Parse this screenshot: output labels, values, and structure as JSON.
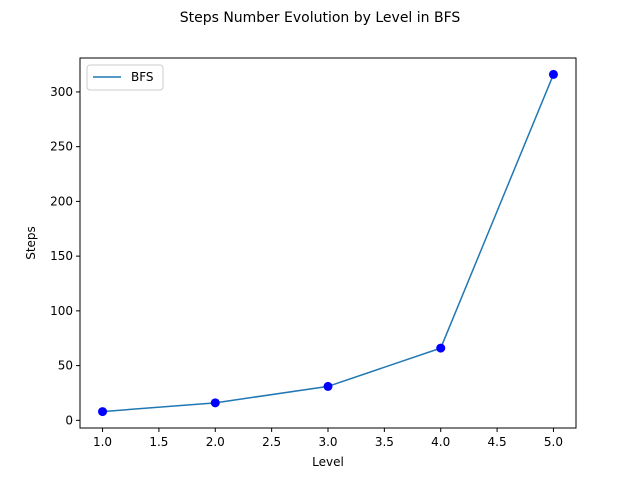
{
  "chart_data": {
    "type": "line",
    "title": "Steps Number Evolution by Level in BFS",
    "xlabel": "Level",
    "ylabel": "Steps",
    "xlim": [
      0.8,
      5.2
    ],
    "ylim": [
      -7,
      331
    ],
    "xticks": [
      1.0,
      1.5,
      2.0,
      2.5,
      3.0,
      3.5,
      4.0,
      4.5,
      5.0
    ],
    "xtick_labels": [
      "1.0",
      "1.5",
      "2.0",
      "2.5",
      "3.0",
      "3.5",
      "4.0",
      "4.5",
      "5.0"
    ],
    "yticks": [
      0,
      50,
      100,
      150,
      200,
      250,
      300
    ],
    "ytick_labels": [
      "0",
      "50",
      "100",
      "150",
      "200",
      "250",
      "300"
    ],
    "grid": false,
    "legend_position": "top-left",
    "series": [
      {
        "name": "BFS",
        "color": "#1f77b4",
        "marker_color": "#0000ff",
        "x": [
          1,
          2,
          3,
          4,
          5
        ],
        "y": [
          8,
          16,
          31,
          66,
          316
        ]
      }
    ]
  }
}
